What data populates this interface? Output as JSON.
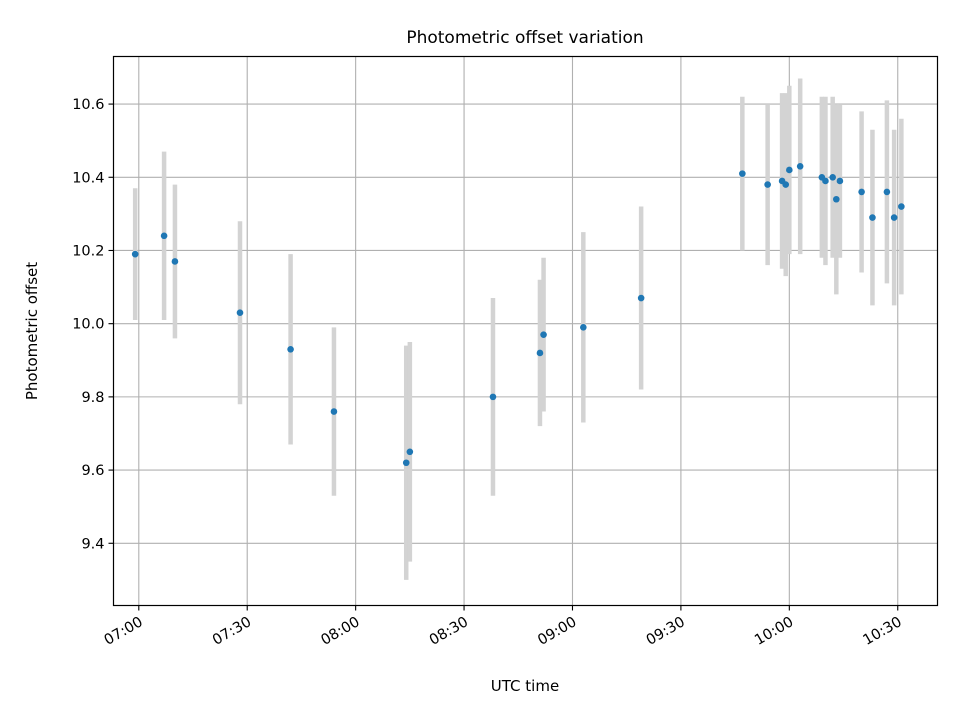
{
  "chart_data": {
    "type": "scatter",
    "title": "Photometric offset variation",
    "xlabel": "UTC time",
    "ylabel": "Photometric offset",
    "x_ticks": [
      "07:00",
      "07:30",
      "08:00",
      "08:30",
      "09:00",
      "09:30",
      "10:00",
      "10:30"
    ],
    "x_range": [
      "06:53",
      "10:41"
    ],
    "y_ticks": [
      "9.4",
      "9.6",
      "9.8",
      "10.0",
      "10.2",
      "10.4",
      "10.6"
    ],
    "ylim": [
      9.23,
      10.73
    ],
    "grid": true,
    "legend": "none",
    "colors": {
      "points": "#1f77b4",
      "error_bars": "#d3d3d3",
      "grid": "#b0b0b0"
    },
    "series": [
      {
        "points": [
          {
            "x": "06:59",
            "y": 10.19,
            "yerr": 0.18
          },
          {
            "x": "07:07",
            "y": 10.24,
            "yerr": 0.23
          },
          {
            "x": "07:10",
            "y": 10.17,
            "yerr": 0.21
          },
          {
            "x": "07:28",
            "y": 10.03,
            "yerr": 0.25
          },
          {
            "x": "07:42",
            "y": 9.93,
            "yerr": 0.26
          },
          {
            "x": "07:54",
            "y": 9.76,
            "yerr": 0.23
          },
          {
            "x": "08:14",
            "y": 9.62,
            "yerr": 0.32
          },
          {
            "x": "08:15",
            "y": 9.65,
            "yerr": 0.3
          },
          {
            "x": "08:38",
            "y": 9.8,
            "yerr": 0.27
          },
          {
            "x": "08:51",
            "y": 9.92,
            "yerr": 0.2
          },
          {
            "x": "08:52",
            "y": 9.97,
            "yerr": 0.21
          },
          {
            "x": "09:03",
            "y": 9.99,
            "yerr": 0.26
          },
          {
            "x": "09:19",
            "y": 10.07,
            "yerr": 0.25
          },
          {
            "x": "09:47",
            "y": 10.41,
            "yerr": 0.21
          },
          {
            "x": "09:54",
            "y": 10.38,
            "yerr": 0.22
          },
          {
            "x": "09:58",
            "y": 10.39,
            "yerr": 0.24
          },
          {
            "x": "09:59",
            "y": 10.38,
            "yerr": 0.25
          },
          {
            "x": "10:00",
            "y": 10.42,
            "yerr": 0.23
          },
          {
            "x": "10:03",
            "y": 10.43,
            "yerr": 0.24
          },
          {
            "x": "10:09",
            "y": 10.4,
            "yerr": 0.22
          },
          {
            "x": "10:10",
            "y": 10.39,
            "yerr": 0.23
          },
          {
            "x": "10:12",
            "y": 10.4,
            "yerr": 0.22
          },
          {
            "x": "10:13",
            "y": 10.34,
            "yerr": 0.26
          },
          {
            "x": "10:14",
            "y": 10.39,
            "yerr": 0.21
          },
          {
            "x": "10:20",
            "y": 10.36,
            "yerr": 0.22
          },
          {
            "x": "10:23",
            "y": 10.29,
            "yerr": 0.24
          },
          {
            "x": "10:27",
            "y": 10.36,
            "yerr": 0.25
          },
          {
            "x": "10:29",
            "y": 10.29,
            "yerr": 0.24
          },
          {
            "x": "10:31",
            "y": 10.32,
            "yerr": 0.24
          }
        ]
      }
    ]
  }
}
